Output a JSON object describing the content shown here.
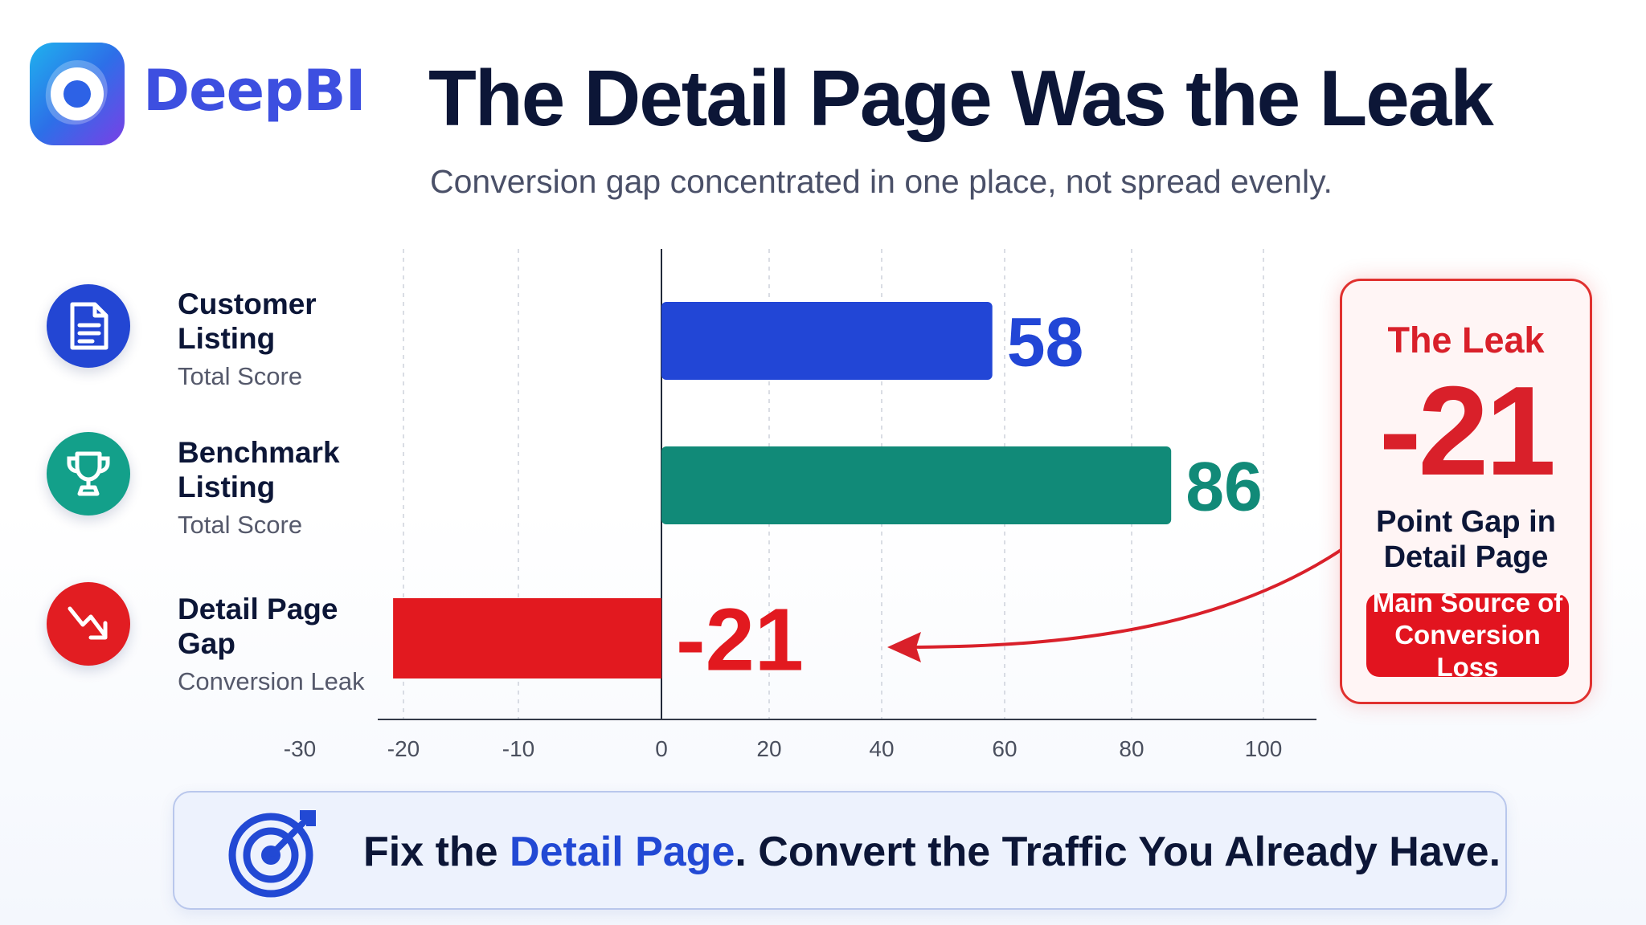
{
  "brand": {
    "name": "DeepBI"
  },
  "header": {
    "title": "The Detail Page Was the Leak",
    "subtitle": "Conversion gap concentrated in one place, not spread evenly."
  },
  "rows": [
    {
      "label": "Customer Listing",
      "sublabel": "Total Score",
      "icon": "document-icon"
    },
    {
      "label": "Benchmark Listing",
      "sublabel": "Total Score",
      "icon": "trophy-icon"
    },
    {
      "label": "Detail Page Gap",
      "sublabel": "Conversion Leak",
      "icon": "trend-down-icon"
    }
  ],
  "chart_data": {
    "type": "bar",
    "orientation": "horizontal",
    "categories": [
      "Customer Listing",
      "Benchmark Listing",
      "Detail Page Gap"
    ],
    "values": [
      58,
      86,
      -21
    ],
    "value_labels": [
      "58",
      "86",
      "-21"
    ],
    "colors": [
      "#2246d6",
      "#118a78",
      "#e2191f"
    ],
    "x_ticks": [
      -30,
      -20,
      -10,
      0,
      20,
      40,
      60,
      80,
      100
    ],
    "x_tick_labels": [
      "-30",
      "-20",
      "-10",
      "0",
      "20",
      "40",
      "60",
      "80",
      "100"
    ],
    "xlim": [
      -30,
      100
    ],
    "grid": "vertical dashed",
    "title": "",
    "xlabel": "",
    "ylabel": ""
  },
  "callout": {
    "title": "The Leak",
    "value": "-21",
    "description": "Point Gap in Detail Page",
    "badge": "Main Source of Conversion Loss"
  },
  "banner": {
    "text_before": "Fix the ",
    "highlight": "Detail Page",
    "text_after": ". Convert the Traffic You Already Have.",
    "icon": "target-icon"
  }
}
